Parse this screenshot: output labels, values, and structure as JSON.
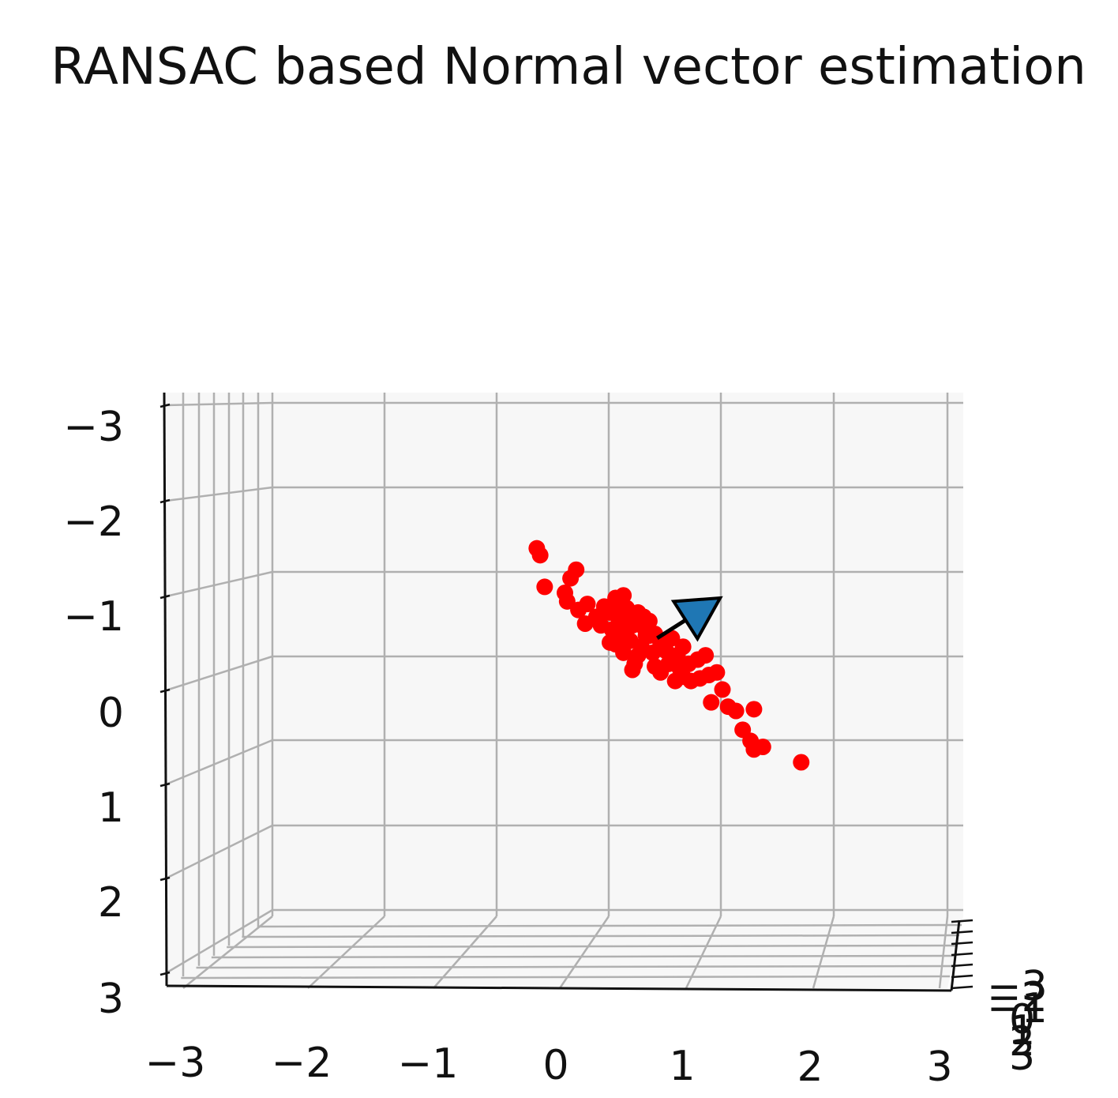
{
  "chart_data": {
    "type": "scatter",
    "projection": "3d",
    "title": "RANSAC based Normal vector estimation",
    "xlabel": "",
    "ylabel": "",
    "zlabel": "",
    "grid": true,
    "xlim": [
      -3,
      3
    ],
    "ylim": [
      -3,
      3
    ],
    "zlim": [
      -3,
      3
    ],
    "x_ticks": [
      "−3",
      "−2",
      "−1",
      "0",
      "1",
      "2",
      "3"
    ],
    "z_ticks": [
      "−3",
      "−2",
      "−1",
      "0",
      "1",
      "2",
      "3"
    ],
    "y_ticks": [
      "−3",
      "−2",
      "−1",
      "0",
      "1",
      "2",
      "3"
    ],
    "point_color": "#ff0000",
    "arrow_color": "#1f77b4",
    "pane_color": "#f7f7f7",
    "grid_color": "#b0b0b0",
    "points": [
      [
        -0.65,
        1.3
      ],
      [
        -0.62,
        1.22
      ],
      [
        -0.58,
        0.85
      ],
      [
        -0.3,
        1.05
      ],
      [
        -0.35,
        0.95
      ],
      [
        -0.4,
        0.78
      ],
      [
        -0.38,
        0.68
      ],
      [
        -0.2,
        0.65
      ],
      [
        -0.22,
        0.42
      ],
      [
        -0.12,
        0.5
      ],
      [
        -0.05,
        0.62
      ],
      [
        0.05,
        0.72
      ],
      [
        0.12,
        0.75
      ],
      [
        0.0,
        0.55
      ],
      [
        0.08,
        0.45
      ],
      [
        0.15,
        0.6
      ],
      [
        0.25,
        0.55
      ],
      [
        -0.08,
        0.4
      ],
      [
        0.02,
        0.35
      ],
      [
        0.1,
        0.32
      ],
      [
        0.2,
        0.4
      ],
      [
        0.3,
        0.38
      ],
      [
        0.35,
        0.28
      ],
      [
        0.05,
        0.18
      ],
      [
        0.18,
        0.22
      ],
      [
        0.28,
        0.15
      ],
      [
        0.4,
        0.3
      ],
      [
        0.45,
        0.2
      ],
      [
        0.12,
        0.08
      ],
      [
        0.25,
        0.05
      ],
      [
        0.38,
        0.08
      ],
      [
        0.5,
        0.1
      ],
      [
        0.55,
        0.25
      ],
      [
        0.6,
        0.05
      ],
      [
        0.22,
        -0.05
      ],
      [
        0.4,
        -0.08
      ],
      [
        0.52,
        -0.05
      ],
      [
        0.62,
        -0.1
      ],
      [
        0.7,
        -0.05
      ],
      [
        0.78,
        0.0
      ],
      [
        0.2,
        -0.12
      ],
      [
        0.45,
        -0.15
      ],
      [
        0.58,
        -0.25
      ],
      [
        0.65,
        -0.2
      ],
      [
        0.72,
        -0.25
      ],
      [
        0.8,
        -0.22
      ],
      [
        0.88,
        -0.18
      ],
      [
        0.95,
        -0.15
      ],
      [
        0.85,
        0.05
      ],
      [
        0.65,
        0.15
      ],
      [
        0.3,
        0.5
      ],
      [
        0.0,
        0.2
      ],
      [
        1.0,
        -0.35
      ],
      [
        0.9,
        -0.5
      ],
      [
        1.05,
        -0.55
      ],
      [
        1.12,
        -0.6
      ],
      [
        1.28,
        -0.58
      ],
      [
        1.18,
        -0.82
      ],
      [
        1.25,
        -0.95
      ],
      [
        1.28,
        -1.05
      ],
      [
        1.36,
        -1.02
      ],
      [
        1.7,
        -1.2
      ],
      [
        0.32,
        0.28
      ],
      [
        0.48,
        0.12
      ],
      [
        0.15,
        0.48
      ],
      [
        -0.28,
        0.58
      ],
      [
        0.1,
        0.6
      ],
      [
        0.35,
        0.45
      ]
    ],
    "arrow": {
      "start": [
        0.42,
        0.25
      ],
      "end": [
        0.98,
        0.72
      ]
    }
  }
}
